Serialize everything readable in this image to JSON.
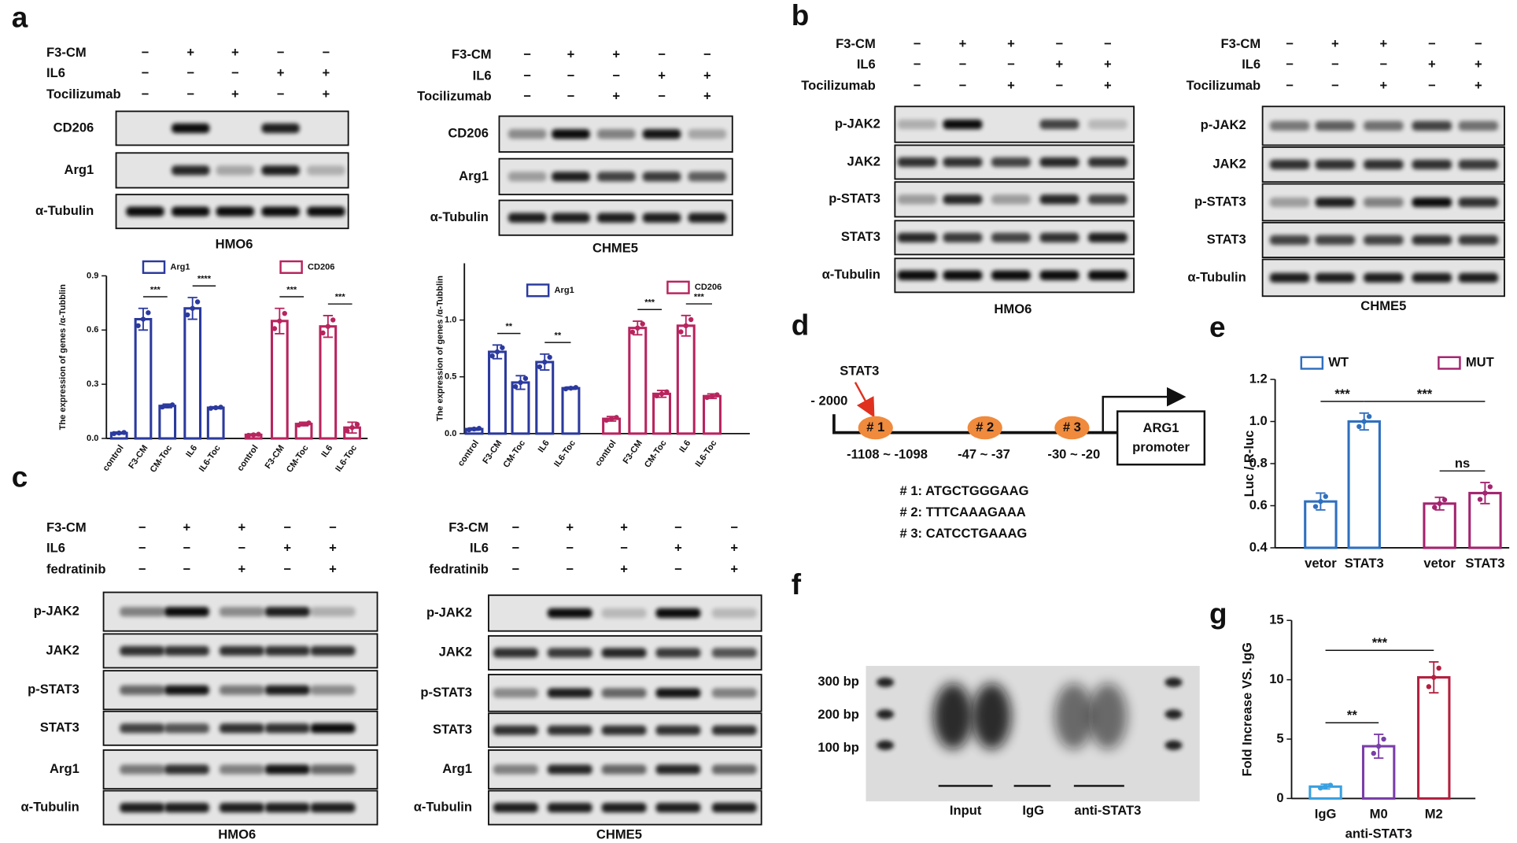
{
  "panel_letters": [
    "a",
    "b",
    "c",
    "d",
    "e",
    "f",
    "g"
  ],
  "blots": [
    {
      "treatments": [
        {
          "label": "F3-CM",
          "signs": [
            "−",
            "+",
            "+",
            "−",
            "−"
          ]
        },
        {
          "label": "IL6",
          "signs": [
            "−",
            "−",
            "−",
            "+",
            "+"
          ]
        },
        {
          "label": "Tocilizumab",
          "signs": [
            "−",
            "−",
            "+",
            "−",
            "+"
          ]
        }
      ],
      "bands": [
        "CD206",
        "Arg1",
        "α-Tubulin"
      ],
      "cell_line": "HMO6"
    },
    {
      "treatments": [
        {
          "label": "F3-CM",
          "signs": [
            "−",
            "+",
            "+",
            "−",
            "−"
          ]
        },
        {
          "label": "IL6",
          "signs": [
            "−",
            "−",
            "−",
            "+",
            "+"
          ]
        },
        {
          "label": "Tocilizumab",
          "signs": [
            "−",
            "−",
            "+",
            "−",
            "+"
          ]
        }
      ],
      "bands": [
        "CD206",
        "Arg1",
        "α-Tubulin"
      ],
      "cell_line": "CHME5"
    },
    {
      "treatments": [
        {
          "label": "F3-CM",
          "signs": [
            "−",
            "+",
            "+",
            "−",
            "−"
          ]
        },
        {
          "label": "IL6",
          "signs": [
            "−",
            "−",
            "−",
            "+",
            "+"
          ]
        },
        {
          "label": "Tocilizumab",
          "signs": [
            "−",
            "−",
            "+",
            "−",
            "+"
          ]
        }
      ],
      "bands": [
        "p-JAK2",
        "JAK2",
        "p-STAT3",
        "STAT3",
        "α-Tubulin"
      ],
      "cell_line": "HMO6"
    },
    {
      "treatments": [
        {
          "label": "F3-CM",
          "signs": [
            "−",
            "+",
            "+",
            "−",
            "−"
          ]
        },
        {
          "label": "IL6",
          "signs": [
            "−",
            "−",
            "−",
            "+",
            "+"
          ]
        },
        {
          "label": "Tocilizumab",
          "signs": [
            "−",
            "−",
            "+",
            "−",
            "+"
          ]
        }
      ],
      "bands": [
        "p-JAK2",
        "JAK2",
        "p-STAT3",
        "STAT3",
        "α-Tubulin"
      ],
      "cell_line": "CHME5"
    },
    {
      "treatments": [
        {
          "label": "F3-CM",
          "signs": [
            "−",
            "+",
            "+",
            "−",
            "−"
          ]
        },
        {
          "label": "IL6",
          "signs": [
            "−",
            "−",
            "−",
            "+",
            "+"
          ]
        },
        {
          "label": "fedratinib",
          "signs": [
            "−",
            "−",
            "+",
            "−",
            "+"
          ]
        }
      ],
      "bands": [
        "p-JAK2",
        "JAK2",
        "p-STAT3",
        "STAT3",
        "Arg1",
        "α-Tubulin"
      ],
      "cell_line": "HMO6"
    },
    {
      "treatments": [
        {
          "label": "F3-CM",
          "signs": [
            "−",
            "+",
            "+",
            "−",
            "−"
          ]
        },
        {
          "label": "IL6",
          "signs": [
            "−",
            "−",
            "−",
            "+",
            "+"
          ]
        },
        {
          "label": "fedratinib",
          "signs": [
            "−",
            "−",
            "+",
            "−",
            "+"
          ]
        }
      ],
      "bands": [
        "p-JAK2",
        "JAK2",
        "p-STAT3",
        "STAT3",
        "Arg1",
        "α-Tubulin"
      ],
      "cell_line": "CHME5"
    }
  ],
  "chart_data": [
    {
      "type": "bar",
      "ylabel": "The expression of genes /α-Tubblin",
      "categories": [
        "control",
        "F3-CM",
        "CM-Toc",
        "IL6",
        "IL6-Toc",
        "control",
        "F3-CM",
        "CM-Toc",
        "IL6",
        "IL6-Toc"
      ],
      "series": [
        {
          "name": "Arg1",
          "color": "#2b3a9e",
          "values": [
            0.03,
            0.66,
            0.18,
            0.72,
            0.17,
            null,
            null,
            null,
            null,
            null
          ],
          "errors": [
            0.005,
            0.06,
            0.01,
            0.06,
            0.005,
            null,
            null,
            null,
            null,
            null
          ]
        },
        {
          "name": "CD206",
          "color": "#b8245e",
          "values": [
            null,
            null,
            null,
            null,
            null,
            0.02,
            0.65,
            0.08,
            0.62,
            0.06
          ],
          "errors": [
            null,
            null,
            null,
            null,
            null,
            0.005,
            0.07,
            0.01,
            0.06,
            0.03
          ]
        }
      ],
      "ylim": [
        0,
        0.9
      ],
      "yticks": [
        {
          "value": 0,
          "label": "0.0"
        },
        0.3,
        0.6,
        0.9
      ],
      "annotations": [
        "***",
        "****",
        "***",
        "***"
      ]
    },
    {
      "type": "bar",
      "ylabel": "The expression of genes /α-Tubblin",
      "categories": [
        "control",
        "F3-CM",
        "CM-Toc",
        "IL6",
        "IL6-Toc",
        "control",
        "F3-CM",
        "CM-Toc",
        "IL6",
        "IL6-Toc"
      ],
      "series": [
        {
          "name": "Arg1",
          "color": "#2b3a9e",
          "values": [
            0.04,
            0.72,
            0.45,
            0.63,
            0.4,
            null,
            null,
            null,
            null,
            null
          ],
          "errors": [
            0.01,
            0.06,
            0.06,
            0.07,
            0.01,
            null,
            null,
            null,
            null,
            null
          ]
        },
        {
          "name": "CD206",
          "color": "#b8245e",
          "values": [
            null,
            null,
            null,
            null,
            null,
            0.13,
            0.93,
            0.35,
            0.95,
            0.33
          ],
          "errors": [
            null,
            null,
            null,
            null,
            null,
            0.02,
            0.06,
            0.03,
            0.09,
            0.02
          ]
        }
      ],
      "ylim": [
        0,
        1.5
      ],
      "yticks": [
        {
          "value": 0,
          "label": "0.0"
        },
        0.5,
        {
          "value": 1,
          "label": "1.0"
        }
      ],
      "annotations": [
        "**",
        "**",
        "***",
        "***"
      ]
    },
    {
      "type": "bar",
      "ylabel": "Luc / R-luc",
      "categories": [
        "vetor",
        "STAT3",
        "vetor",
        "STAT3"
      ],
      "series": [
        {
          "name": "WT",
          "color": "#2f6fbf",
          "values": [
            0.62,
            1.0,
            null,
            null
          ],
          "errors": [
            0.04,
            0.04,
            null,
            null
          ]
        },
        {
          "name": "MUT",
          "color": "#a3246f",
          "values": [
            null,
            null,
            0.61,
            0.66
          ],
          "errors": [
            null,
            null,
            0.03,
            0.05
          ]
        }
      ],
      "ylim": [
        0.4,
        1.2
      ],
      "yticks": [
        0.4,
        0.6,
        0.8,
        {
          "value": 1,
          "label": "1.0"
        },
        1.2
      ],
      "annotations": [
        "***",
        "***",
        "ns"
      ]
    },
    {
      "type": "bar",
      "ylabel": "Fold Increase VS. IgG",
      "xlabel": "anti-STAT3",
      "categories": [
        "IgG",
        "M0",
        "M2"
      ],
      "series": [
        {
          "values": [
            1.0,
            4.4,
            10.2
          ],
          "errors": [
            0.2,
            1.0,
            1.3
          ],
          "colors": [
            "#3aa0e0",
            "#7a3ea8",
            "#b3203f"
          ]
        }
      ],
      "ylim": [
        0,
        15
      ],
      "yticks": [
        0,
        5,
        10,
        15
      ],
      "annotations": [
        "**",
        "***"
      ]
    }
  ],
  "promoter": {
    "tf": "STAT3",
    "start": "- 2000",
    "sites": [
      {
        "label": "# 1",
        "range": "-1108  ~  -1098"
      },
      {
        "label": "# 2",
        "range": "-47  ~  -37"
      },
      {
        "label": "# 3",
        "range": "-30  ~  -20"
      }
    ],
    "box": [
      "ARG1",
      "promoter"
    ],
    "sequences": [
      "# 1: ATGCTGGGAAG",
      "# 2: TTTCAAAGAAA",
      "# 3: CATCCTGAAAG"
    ]
  },
  "gel": {
    "markers": [
      "300 bp",
      "200 bp",
      "100 bp"
    ],
    "lanes": [
      "Input",
      "IgG",
      "anti-STAT3"
    ]
  }
}
